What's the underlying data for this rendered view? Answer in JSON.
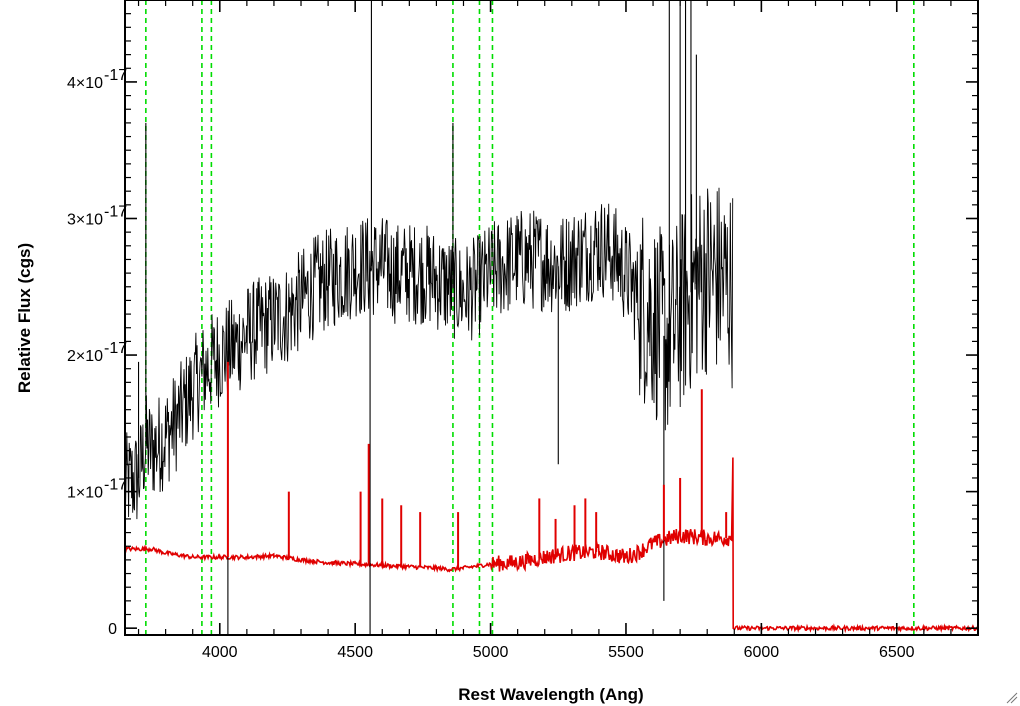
{
  "chart_data": {
    "type": "line",
    "title": "",
    "xlabel": "Rest Wavelength (Ang)",
    "ylabel": "Relative Flux (cgs)",
    "xlim": [
      3650,
      6800
    ],
    "ylim": [
      -5e-19,
      4.6e-17
    ],
    "x_ticks": [
      {
        "value": 4000,
        "label": "4000"
      },
      {
        "value": 4500,
        "label": "4500"
      },
      {
        "value": 5000,
        "label": "5000"
      },
      {
        "value": 5500,
        "label": "5500"
      },
      {
        "value": 6000,
        "label": "6000"
      },
      {
        "value": 6500,
        "label": "6500"
      }
    ],
    "y_ticks": [
      {
        "value": 0,
        "base": "0",
        "exp": ""
      },
      {
        "value": 1e-17,
        "base": "1×10",
        "exp": "-17"
      },
      {
        "value": 2e-17,
        "base": "2×10",
        "exp": "-17"
      },
      {
        "value": 3e-17,
        "base": "3×10",
        "exp": "-17"
      },
      {
        "value": 4e-17,
        "base": "4×10",
        "exp": "-17"
      }
    ],
    "grid": false,
    "legend": "none",
    "series": [
      {
        "color": "#000000",
        "style": "noisy",
        "x": [
          3650,
          3700,
          3727,
          3750,
          3800,
          3850,
          3900,
          3950,
          4000,
          4050,
          4100,
          4150,
          4200,
          4250,
          4300,
          4350,
          4400,
          4450,
          4500,
          4550,
          4600,
          4650,
          4700,
          4750,
          4800,
          4850,
          4900,
          4950,
          5000,
          5050,
          5100,
          5150,
          5200,
          5250,
          5300,
          5350,
          5400,
          5450,
          5500,
          5550,
          5600,
          5650,
          5700,
          5750,
          5800,
          5850,
          5895
        ],
        "y": [
          1.05e-17,
          1.1e-17,
          1.35e-17,
          1.3e-17,
          1.4e-17,
          1.55e-17,
          1.75e-17,
          1.9e-17,
          2e-17,
          2.05e-17,
          2.15e-17,
          2.2e-17,
          2.25e-17,
          2.3e-17,
          2.4e-17,
          2.5e-17,
          2.55e-17,
          2.6e-17,
          2.65e-17,
          2.65e-17,
          2.65e-17,
          2.6e-17,
          2.6e-17,
          2.6e-17,
          2.55e-17,
          2.5e-17,
          2.45e-17,
          2.5e-17,
          2.6e-17,
          2.65e-17,
          2.7e-17,
          2.7e-17,
          2.7e-17,
          2.65e-17,
          2.7e-17,
          2.75e-17,
          2.8e-17,
          2.75e-17,
          2.6e-17,
          2.4e-17,
          2.3e-17,
          2.1e-17,
          2.3e-17,
          2.5e-17,
          2.6e-17,
          2.55e-17,
          2.5e-17
        ]
      },
      {
        "color": "#e00000",
        "style": "smooth",
        "x": [
          3650,
          3700,
          3750,
          3800,
          3900,
          4000,
          4100,
          4200,
          4300,
          4400,
          4500,
          4600,
          4700,
          4800,
          4850,
          4900,
          5000,
          5100,
          5200,
          5300,
          5400,
          5500,
          5550,
          5600,
          5650,
          5700,
          5800,
          5890,
          5895,
          5896,
          6800
        ],
        "y": [
          5.8e-18,
          5.8e-18,
          5.8e-18,
          5.5e-18,
          5.2e-18,
          5.2e-18,
          5.2e-18,
          5.3e-18,
          5e-18,
          4.8e-18,
          4.7e-18,
          4.6e-18,
          4.5e-18,
          4.4e-18,
          4.3e-18,
          4.4e-18,
          4.7e-18,
          4.8e-18,
          5.2e-18,
          5.5e-18,
          5.6e-18,
          5.2e-18,
          5.6e-18,
          6.2e-18,
          6.5e-18,
          6.8e-18,
          6.6e-18,
          6.6e-18,
          1.25e-17,
          0.0,
          0.0
        ]
      }
    ],
    "emission_spikes": [
      {
        "x": 4030,
        "y": 1.95e-17
      },
      {
        "x": 4255,
        "y": 1e-17
      },
      {
        "x": 4520,
        "y": 1e-17
      },
      {
        "x": 4550,
        "y": 1.35e-17
      },
      {
        "x": 4600,
        "y": 9.5e-18
      },
      {
        "x": 4670,
        "y": 9e-18
      },
      {
        "x": 4740,
        "y": 8.5e-18
      },
      {
        "x": 4880,
        "y": 8.5e-18
      },
      {
        "x": 5180,
        "y": 9.5e-18
      },
      {
        "x": 5240,
        "y": 8e-18
      },
      {
        "x": 5310,
        "y": 9e-18
      },
      {
        "x": 5350,
        "y": 9.5e-18
      },
      {
        "x": 5390,
        "y": 8.5e-18
      },
      {
        "x": 5640,
        "y": 1.05e-17
      },
      {
        "x": 5700,
        "y": 1.1e-17
      },
      {
        "x": 5780,
        "y": 1.75e-17
      },
      {
        "x": 5870,
        "y": 8.5e-18
      }
    ],
    "absorption_spikes": [
      {
        "x": 3700,
        "y": 1.95e-17
      },
      {
        "x": 3727,
        "y": 3.7e-17
      },
      {
        "x": 4030,
        "y": -5e-19
      },
      {
        "x": 4560,
        "y": 4.6e-17
      },
      {
        "x": 4555,
        "y": -5e-19
      },
      {
        "x": 4861,
        "y": 3.7e-17
      },
      {
        "x": 5250,
        "y": 1.2e-17
      },
      {
        "x": 5640,
        "y": 2e-18
      },
      {
        "x": 5660,
        "y": 4.6e-17
      },
      {
        "x": 5700,
        "y": 4.6e-17
      },
      {
        "x": 5720,
        "y": 4.6e-17
      },
      {
        "x": 5740,
        "y": 4.6e-17
      },
      {
        "x": 5760,
        "y": 4.2e-17
      }
    ],
    "reference_lines": {
      "color": "#00dd00",
      "style": "dashed",
      "x": [
        3727,
        3934,
        3969,
        4861,
        4959,
        5007,
        6563
      ]
    }
  }
}
